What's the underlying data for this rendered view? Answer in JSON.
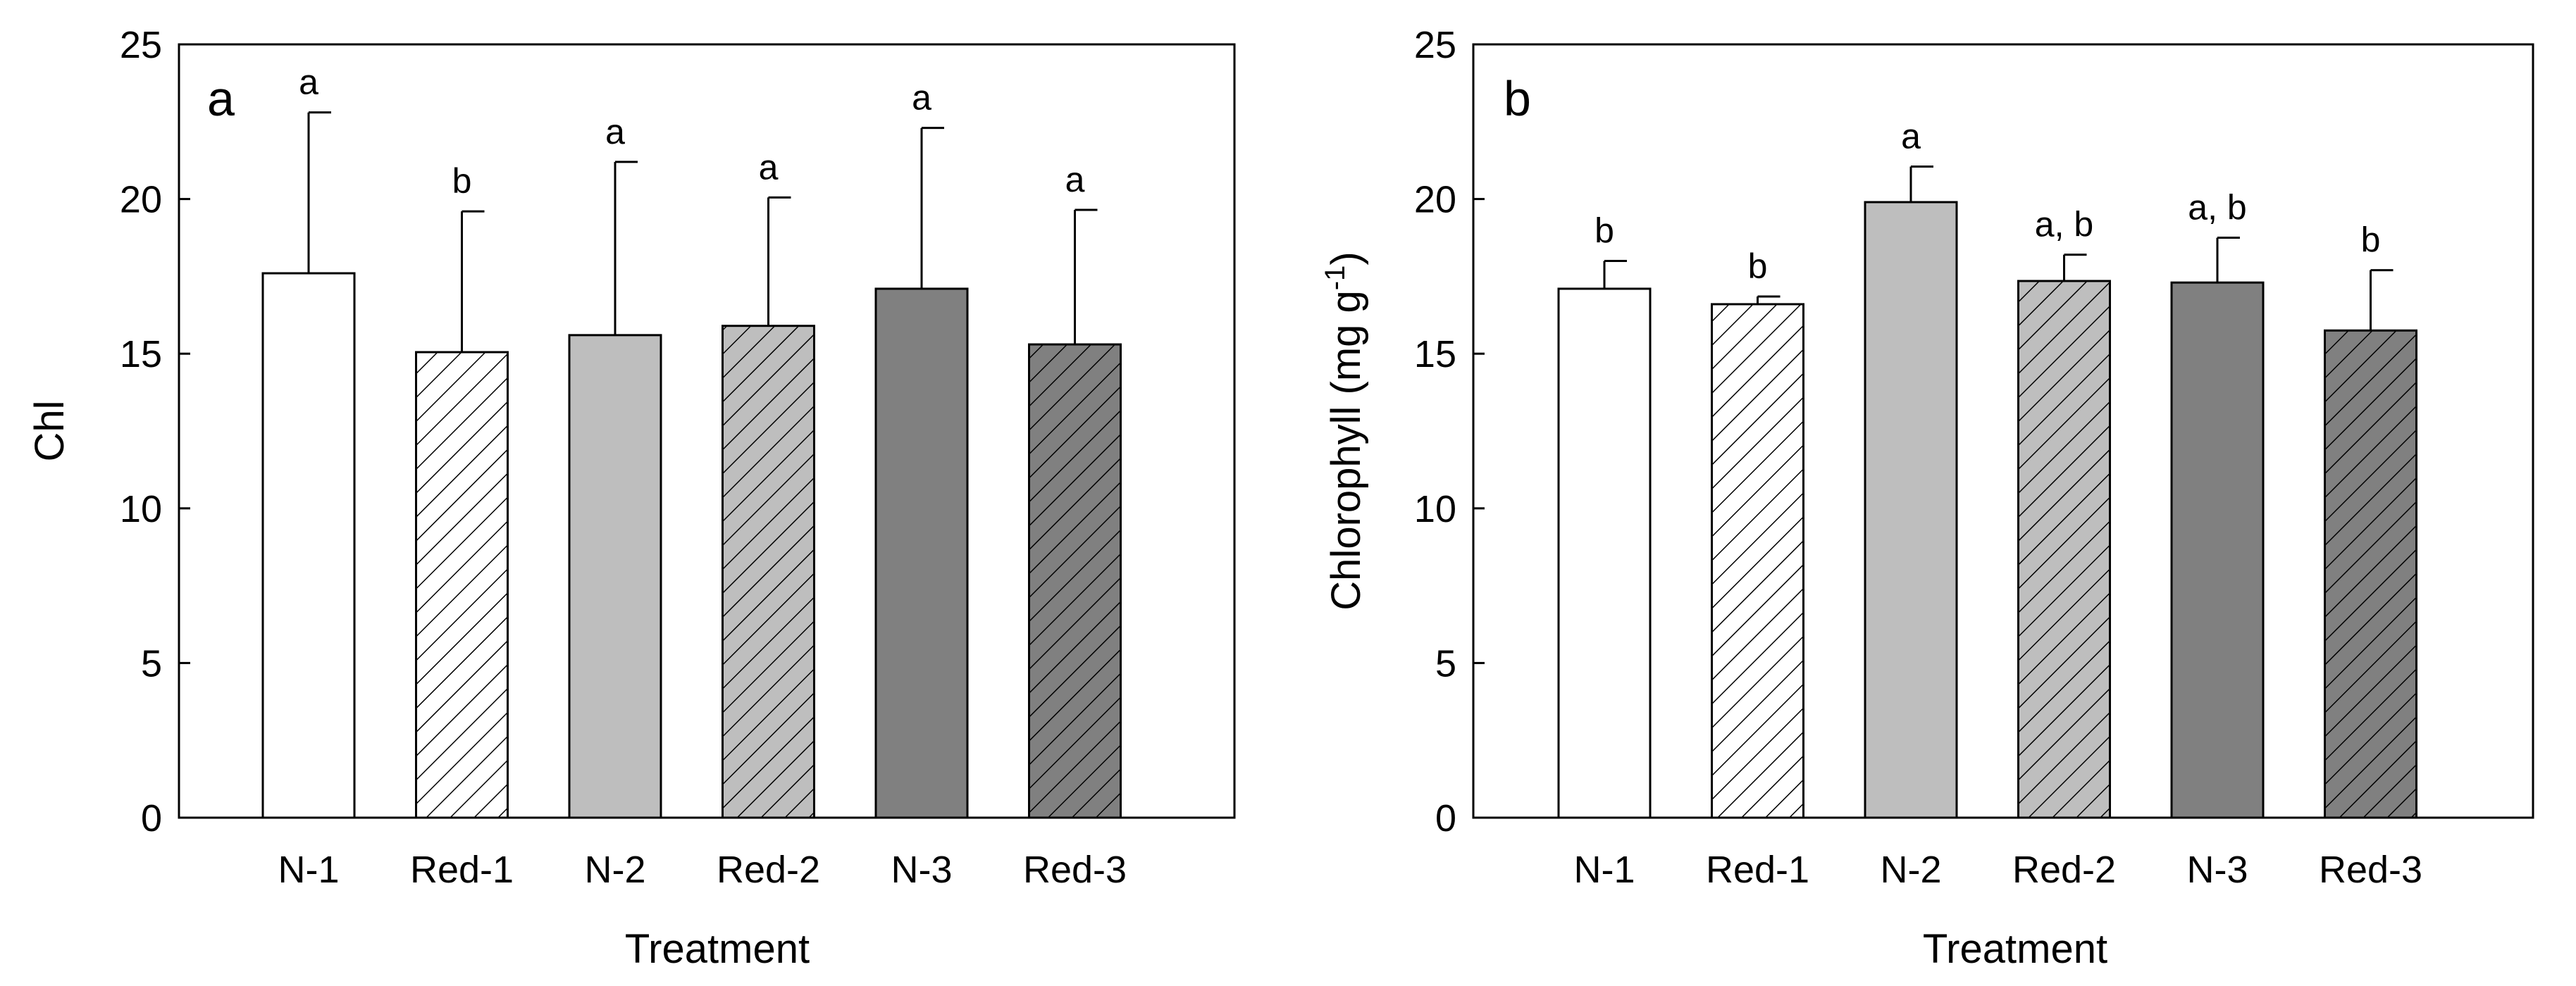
{
  "chart_data": [
    {
      "type": "bar",
      "panel": "a",
      "xlabel": "Treatment",
      "ylabel": "Chl",
      "ylim": [
        0,
        25
      ],
      "yticks": [
        0,
        5,
        10,
        15,
        20,
        25
      ],
      "categories": [
        "N-1",
        "Red-1",
        "N-2",
        "Red-2",
        "N-3",
        "Red-3"
      ],
      "values": [
        17.6,
        15.05,
        15.6,
        15.9,
        17.1,
        15.3
      ],
      "errors": [
        5.2,
        4.55,
        5.6,
        4.15,
        5.2,
        4.35
      ],
      "significance": [
        "a",
        "b",
        "a",
        "a",
        "a",
        "a"
      ]
    },
    {
      "type": "bar",
      "panel": "b",
      "xlabel": "Treatment",
      "ylabel": "Chlorophyll (mg g-1)",
      "ylim": [
        0,
        25
      ],
      "yticks": [
        0,
        5,
        10,
        15,
        20,
        25
      ],
      "categories": [
        "N-1",
        "Red-1",
        "N-2",
        "Red-2",
        "N-3",
        "Red-3"
      ],
      "values": [
        17.1,
        16.6,
        19.9,
        17.35,
        17.3,
        15.75
      ],
      "errors": [
        0.9,
        0.25,
        1.15,
        0.85,
        1.45,
        1.95
      ],
      "significance": [
        "b",
        "b",
        "a",
        "a, b",
        "a, b",
        "b"
      ]
    }
  ],
  "styles": {
    "fills": [
      "#ffffff",
      "#ffffff",
      "#bebebe",
      "#bebebe",
      "#808080",
      "#808080"
    ],
    "hatched": [
      false,
      true,
      false,
      true,
      false,
      true
    ],
    "line_color": "#000000"
  },
  "ylabel_b_parts": {
    "main": "Chlorophyll (mg g",
    "sup": "-1",
    "close": ")"
  }
}
